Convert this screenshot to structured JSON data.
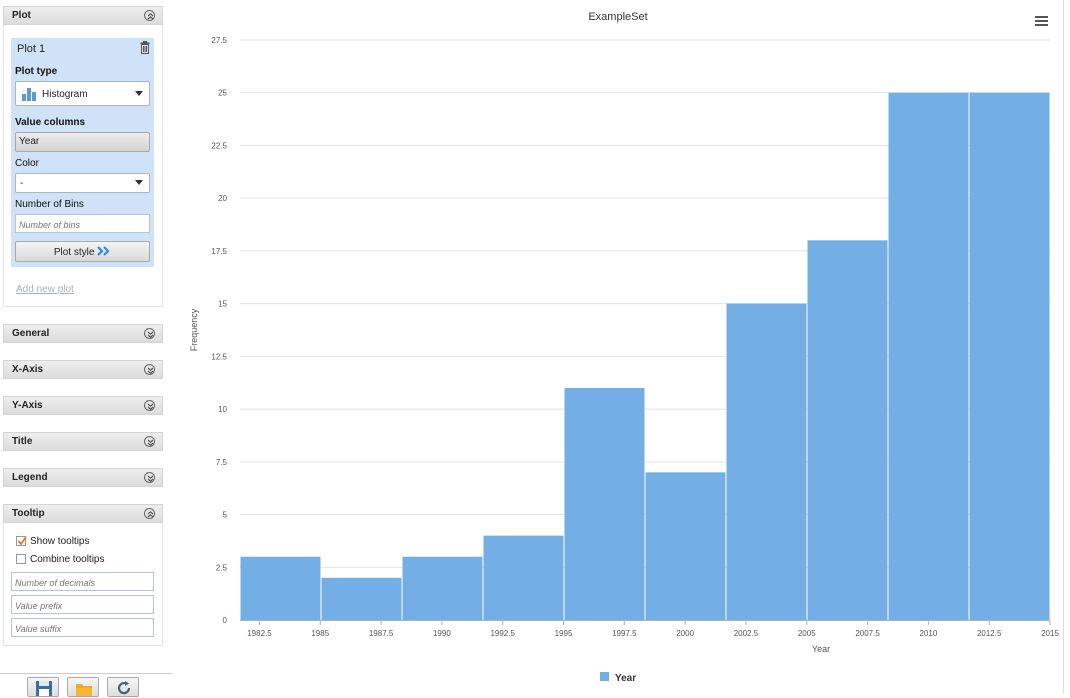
{
  "sidebar": {
    "plot_section": {
      "title": "Plot"
    },
    "plot_card": {
      "title": "Plot 1",
      "plot_type_label": "Plot type",
      "plot_type_value": "Histogram",
      "value_columns_label": "Value columns",
      "value_column": "Year",
      "color_label": "Color",
      "color_value": "-",
      "bins_label": "Number of Bins",
      "bins_placeholder": "Number of bins",
      "plot_style_label": "Plot style"
    },
    "add_new_plot": "Add new plot",
    "sections": [
      "General",
      "X-Axis",
      "Y-Axis",
      "Title",
      "Legend"
    ],
    "tooltip": {
      "title": "Tooltip",
      "show_tooltips_label": "Show tooltips",
      "show_tooltips_checked": true,
      "combine_tooltips_label": "Combine tooltips",
      "combine_tooltips_checked": false,
      "decimals_placeholder": "Number of decimals",
      "prefix_placeholder": "Value prefix",
      "suffix_placeholder": "Value suffix"
    },
    "footer_icons": [
      "save-icon",
      "folder-icon",
      "refresh-icon"
    ]
  },
  "chart_data": {
    "type": "bar",
    "title": "ExampleSet",
    "xlabel": "Year",
    "ylabel": "Frequency",
    "x_ticks": [
      "1982.5",
      "1985",
      "1987.5",
      "1990",
      "1992.5",
      "1995",
      "1997.5",
      "2000",
      "2002.5",
      "2005",
      "2007.5",
      "2010",
      "2012.5",
      "2015"
    ],
    "y_ticks": [
      "0",
      "2.5",
      "5",
      "7.5",
      "10",
      "12.5",
      "15",
      "17.5",
      "20",
      "22.5",
      "25",
      "27.5"
    ],
    "xlim": [
      1981.7,
      2015
    ],
    "ylim": [
      0,
      27.5
    ],
    "bins": [
      {
        "start": 1981.7,
        "end": 1985.03,
        "value": 3
      },
      {
        "start": 1985.03,
        "end": 1988.36,
        "value": 2
      },
      {
        "start": 1988.36,
        "end": 1991.69,
        "value": 3
      },
      {
        "start": 1991.69,
        "end": 1995.02,
        "value": 4
      },
      {
        "start": 1995.02,
        "end": 1998.35,
        "value": 11
      },
      {
        "start": 1998.35,
        "end": 2001.68,
        "value": 7
      },
      {
        "start": 2001.68,
        "end": 2005.01,
        "value": 15
      },
      {
        "start": 2005.01,
        "end": 2008.34,
        "value": 18
      },
      {
        "start": 2008.34,
        "end": 2011.67,
        "value": 25
      },
      {
        "start": 2011.67,
        "end": 2015.0,
        "value": 25
      }
    ],
    "series": [
      {
        "name": "Year",
        "color": "#73afe4"
      }
    ],
    "grid": true,
    "legend_position": "bottom-center",
    "menu_icon": "hamburger-menu-icon"
  }
}
